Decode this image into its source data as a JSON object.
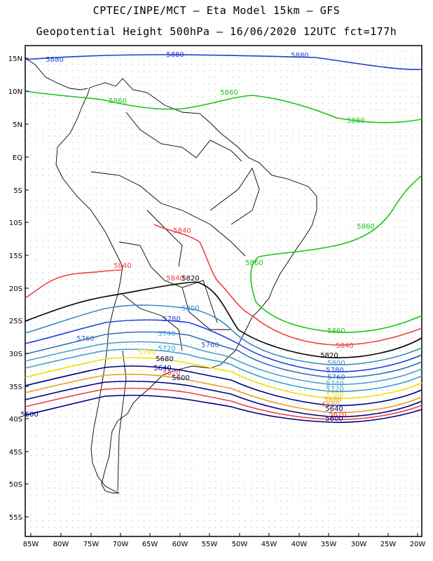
{
  "title_line1": "CPTEC/INPE/MCT –  Eta Model 15km – GFS",
  "title_line2": "Geopotential Height 500hPa – 16/06/2020 12UTC fct=177h",
  "lat_labels": [
    "15N",
    "10N",
    "5N",
    "EQ",
    "5S",
    "10S",
    "15S",
    "20S",
    "25S",
    "30S",
    "35S",
    "40S",
    "45S",
    "50S",
    "55S"
  ],
  "lon_labels": [
    "85W",
    "80W",
    "75W",
    "70W",
    "65W",
    "60W",
    "55W",
    "50W",
    "45W",
    "40W",
    "35W",
    "30W",
    "25W",
    "20W"
  ],
  "contour_labels": [
    {
      "text": "5880",
      "color": "#1f3fd0"
    },
    {
      "text": "5880",
      "color": "#1f3fd0"
    },
    {
      "text": "5880",
      "color": "#1f3fd0"
    },
    {
      "text": "5860",
      "color": "#19c419"
    },
    {
      "text": "5860",
      "color": "#19c419"
    },
    {
      "text": "5860",
      "color": "#19c419"
    },
    {
      "text": "5860",
      "color": "#19c419"
    },
    {
      "text": "5860",
      "color": "#19c419"
    },
    {
      "text": "5860",
      "color": "#19c419"
    },
    {
      "text": "5840",
      "color": "#f04040"
    },
    {
      "text": "5840",
      "color": "#f04040"
    },
    {
      "text": "5840",
      "color": "#f04040"
    },
    {
      "text": "5840",
      "color": "#f04040"
    },
    {
      "text": "5820",
      "color": "#000000"
    },
    {
      "text": "5820",
      "color": "#000000"
    },
    {
      "text": "5800",
      "color": "#3a8fc4"
    },
    {
      "text": "5800",
      "color": "#3a8fc4"
    },
    {
      "text": "5780",
      "color": "#2040e0"
    },
    {
      "text": "5780",
      "color": "#2040e0"
    },
    {
      "text": "5760",
      "color": "#2f6fb8"
    },
    {
      "text": "5760",
      "color": "#2f6fb8"
    },
    {
      "text": "5760",
      "color": "#2f6fb8"
    },
    {
      "text": "5740",
      "color": "#4aa0d0"
    },
    {
      "text": "5740",
      "color": "#4aa0d0"
    },
    {
      "text": "5720",
      "color": "#3aa0c8"
    },
    {
      "text": "5720",
      "color": "#3aa0c8"
    },
    {
      "text": "5700",
      "color": "#f0e000"
    },
    {
      "text": "5700",
      "color": "#f0e000"
    },
    {
      "text": "5680",
      "color": "#000080"
    },
    {
      "text": "5680",
      "color": "#e0a030"
    },
    {
      "text": "5660",
      "color": "#e8a020"
    },
    {
      "text": "5640",
      "color": "#000080"
    },
    {
      "text": "5640",
      "color": "#000080"
    },
    {
      "text": "5620",
      "color": "#f04040"
    },
    {
      "text": "5620",
      "color": "#f04040"
    },
    {
      "text": "5600",
      "color": "#000080"
    },
    {
      "text": "5600",
      "color": "#000080"
    },
    {
      "text": "5600",
      "color": "#000080"
    }
  ]
}
